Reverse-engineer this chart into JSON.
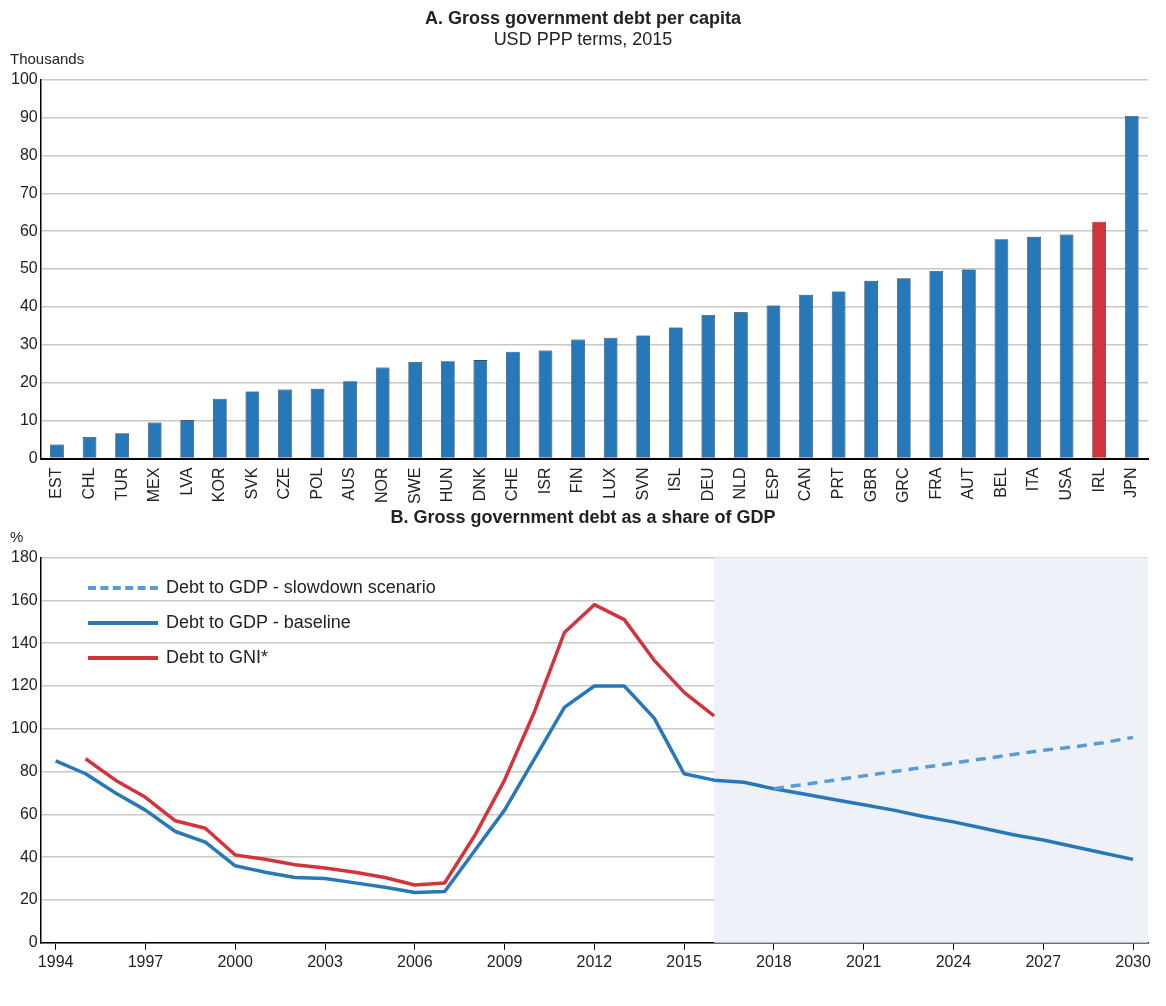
{
  "chart_data": [
    {
      "type": "bar",
      "title": "A. Gross government debt per capita",
      "subtitle": "USD PPP terms, 2015",
      "ylabel": "Thousands",
      "categories": [
        "EST",
        "CHL",
        "TUR",
        "MEX",
        "LVA",
        "KOR",
        "SVK",
        "CZE",
        "POL",
        "AUS",
        "NOR",
        "SWE",
        "HUN",
        "DNK",
        "CHE",
        "ISR",
        "FIN",
        "LUX",
        "SVN",
        "ISL",
        "DEU",
        "NLD",
        "ESP",
        "CAN",
        "PRT",
        "GBR",
        "GRC",
        "FRA",
        "AUT",
        "BEL",
        "ITA",
        "USA",
        "IRL",
        "JPN"
      ],
      "values": [
        3.7,
        5.7,
        6.7,
        9.5,
        10.1,
        15.8,
        17.7,
        18.2,
        18.4,
        20.4,
        24.0,
        25.5,
        25.7,
        26.0,
        28.2,
        28.5,
        31.4,
        31.9,
        32.5,
        34.6,
        37.9,
        38.6,
        40.4,
        43.2,
        44.1,
        46.9,
        47.6,
        49.5,
        49.9,
        57.9,
        58.5,
        59.1,
        62.5,
        90.4
      ],
      "colors": [
        "#2678b9",
        "#2678b9",
        "#2678b9",
        "#2678b9",
        "#2678b9",
        "#2678b9",
        "#2678b9",
        "#2678b9",
        "#2678b9",
        "#2678b9",
        "#2678b9",
        "#2678b9",
        "#2678b9",
        "#2678b9",
        "#2678b9",
        "#2678b9",
        "#2678b9",
        "#2678b9",
        "#2678b9",
        "#2678b9",
        "#2678b9",
        "#2678b9",
        "#2678b9",
        "#2678b9",
        "#2678b9",
        "#2678b9",
        "#2678b9",
        "#2678b9",
        "#2678b9",
        "#2678b9",
        "#2678b9",
        "#2678b9",
        "#d3333a",
        "#2678b9"
      ],
      "ylim": [
        0,
        100
      ],
      "yticks": [
        0,
        10,
        20,
        30,
        40,
        50,
        60,
        70,
        80,
        90,
        100
      ],
      "grid": "y"
    },
    {
      "type": "line",
      "title": "B. Gross government debt as a share of GDP",
      "ylabel": "%",
      "legend": "top left",
      "grid": "y",
      "xlim": [
        1993.5,
        2030.5
      ],
      "xticks": [
        1994,
        1997,
        2000,
        2003,
        2006,
        2009,
        2012,
        2015,
        2018,
        2021,
        2024,
        2027,
        2030
      ],
      "ylim": [
        0,
        180
      ],
      "yticks": [
        0,
        20,
        40,
        60,
        80,
        100,
        120,
        140,
        160,
        180
      ],
      "bands": [
        {
          "axis": "x",
          "from": 2016,
          "to": 2030.5,
          "color": "#eef2f8"
        }
      ],
      "series": [
        {
          "name": "Debt to GDP - slowdown scenario",
          "color": "#5b9bd5",
          "line_style": "dashed",
          "x": [
            2018,
            2019,
            2020,
            2021,
            2022,
            2023,
            2024,
            2025,
            2026,
            2027,
            2028,
            2029,
            2030
          ],
          "values": [
            72,
            74,
            76,
            78,
            80,
            82,
            84,
            86,
            88,
            90,
            91.5,
            93.5,
            96
          ]
        },
        {
          "name": "Debt to GDP - baseline",
          "color": "#2678b9",
          "line_style": "solid",
          "x": [
            1994,
            1995,
            1996,
            1997,
            1998,
            1999,
            2000,
            2001,
            2002,
            2003,
            2004,
            2005,
            2006,
            2007,
            2008,
            2009,
            2010,
            2011,
            2012,
            2013,
            2014,
            2015,
            2016,
            2017,
            2018,
            2019,
            2020,
            2021,
            2022,
            2023,
            2024,
            2025,
            2026,
            2027,
            2028,
            2029,
            2030
          ],
          "values": [
            85,
            79,
            70,
            62,
            52,
            47,
            36,
            33,
            30.5,
            30,
            28,
            26,
            23.5,
            24,
            43,
            62,
            86,
            110,
            120,
            120,
            105,
            79,
            76,
            75,
            72,
            69.5,
            67,
            64.5,
            62,
            59,
            56.5,
            53.5,
            50.5,
            48,
            45,
            42,
            39
          ]
        },
        {
          "name": "Debt to GNI*",
          "color": "#d3333a",
          "line_style": "solid",
          "x": [
            1995,
            1996,
            1997,
            1998,
            1999,
            2000,
            2001,
            2002,
            2003,
            2004,
            2005,
            2006,
            2007,
            2008,
            2009,
            2010,
            2011,
            2012,
            2013,
            2014,
            2015,
            2016
          ],
          "values": [
            86,
            76,
            68,
            57,
            53.5,
            41,
            39,
            36.5,
            35,
            33,
            30.5,
            27,
            28,
            50,
            76,
            108,
            145,
            158,
            151,
            132,
            117,
            106
          ]
        }
      ]
    }
  ]
}
